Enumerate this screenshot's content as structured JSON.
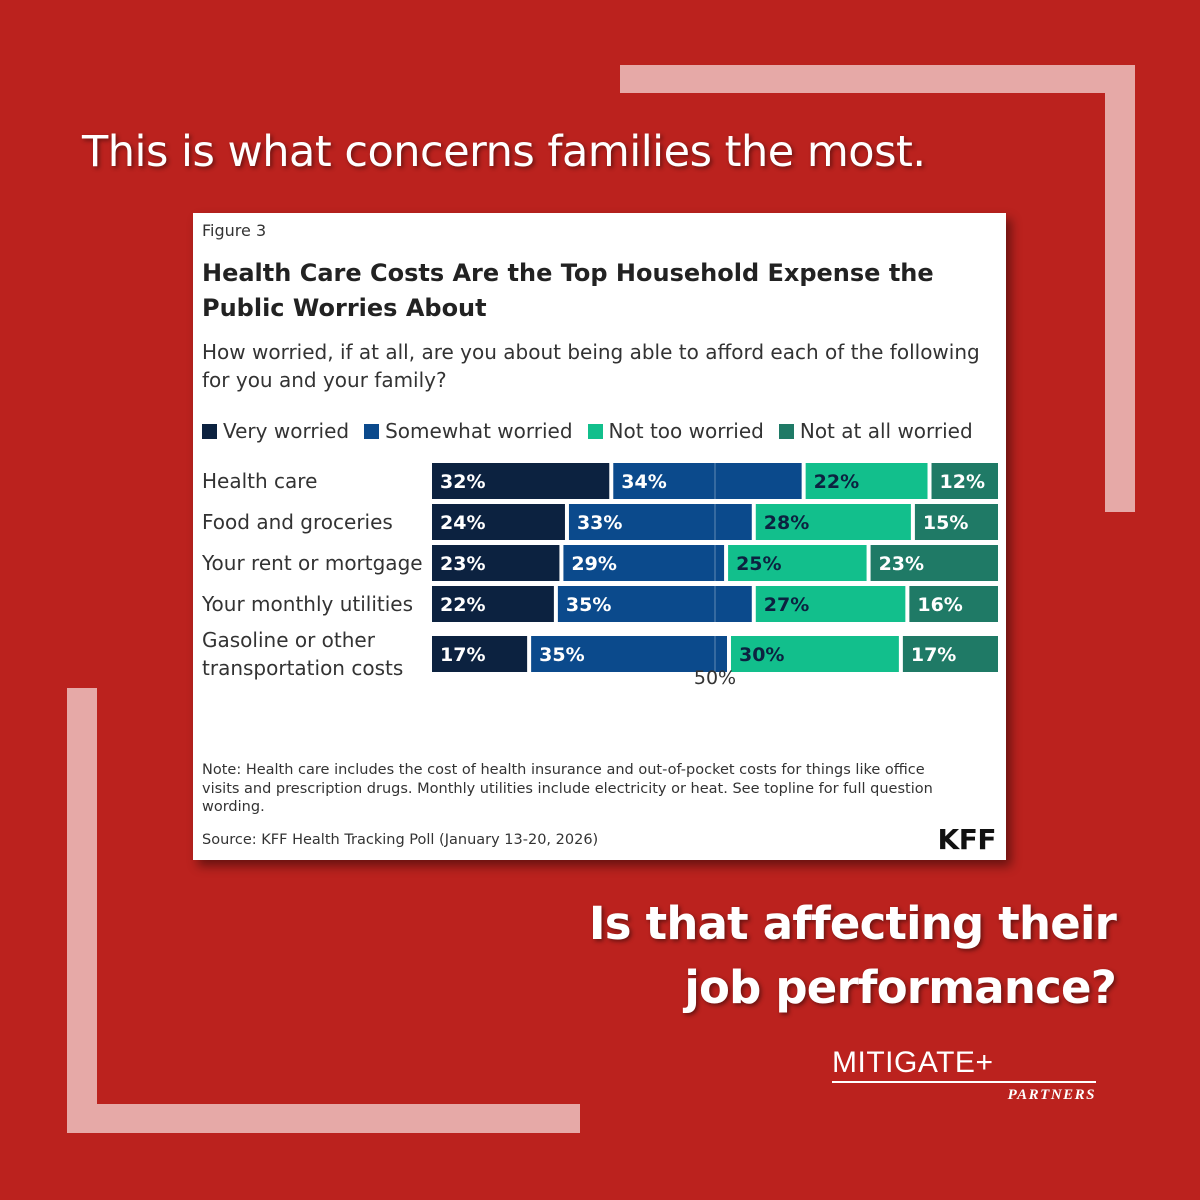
{
  "headline_top": "This is what concerns families the most.",
  "headline_bottom_line1": "Is that affecting their",
  "headline_bottom_line2": "job performance?",
  "card": {
    "figure_label": "Figure 3",
    "note": "Note: Health care includes the cost of health insurance and out-of-pocket costs for things like office visits and prescription drugs. Monthly utilities include electricity or heat. See topline for full question wording.",
    "source": "Source: KFF Health Tracking Poll (January 13-20, 2026)",
    "logo": "KFF"
  },
  "brand": {
    "name": "MITIGATE+",
    "sub": "PARTNERS"
  },
  "colors": {
    "background": "#bb221e",
    "frame": "#e6a9a7",
    "very_worried": "#0c2240",
    "somewhat_worried": "#0b4a8c",
    "not_too_worried": "#12bf8c",
    "not_at_all_worried": "#1f7a66"
  },
  "chart_data": {
    "type": "bar",
    "orientation": "horizontal-stacked",
    "title": "Health Care Costs Are the Top Household Expense the Public Worries About",
    "subtitle": "How worried, if at all, are you about being able to afford each of the following for you and your family?",
    "categories": [
      [
        "Health care"
      ],
      [
        "Food and groceries"
      ],
      [
        "Your rent or mortgage"
      ],
      [
        "Your monthly utilities"
      ],
      [
        "Gasoline or other",
        "transportation costs"
      ]
    ],
    "series": [
      {
        "name": "Very worried",
        "color": "#0c2240",
        "values": [
          32,
          24,
          23,
          22,
          17
        ]
      },
      {
        "name": "Somewhat worried",
        "color": "#0b4a8c",
        "values": [
          34,
          33,
          29,
          35,
          35
        ]
      },
      {
        "name": "Not too worried",
        "color": "#12bf8c",
        "values": [
          22,
          28,
          25,
          27,
          30
        ]
      },
      {
        "name": "Not at all worried",
        "color": "#1f7a66",
        "values": [
          12,
          15,
          23,
          16,
          17
        ]
      }
    ],
    "value_suffix": "%",
    "reference_line": {
      "value": 50,
      "label": "50%"
    },
    "legend_position": "top-left"
  }
}
